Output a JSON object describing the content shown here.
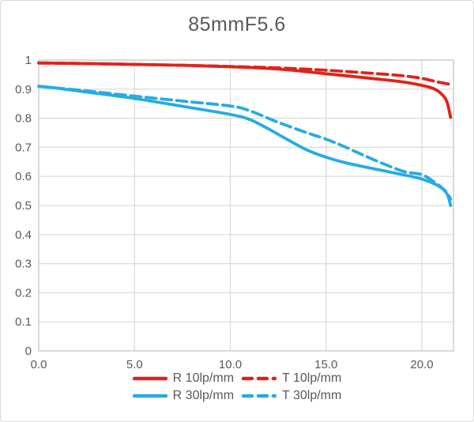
{
  "chart_data": {
    "type": "line",
    "title": "85mmF5.6",
    "xlabel": "",
    "ylabel": "",
    "xlim": [
      0,
      21.65
    ],
    "ylim": [
      0,
      1
    ],
    "grid": true,
    "legend_position": "bottom",
    "colors": {
      "grid": "#D9D9D9",
      "axis": "#C0C0C0",
      "text": "#595959",
      "red": "#E0231A",
      "blue": "#29ABE2"
    },
    "x_axis": {
      "ticks": [
        {
          "value": 0,
          "label": "0.0"
        },
        {
          "value": 5,
          "label": "5.0"
        },
        {
          "value": 10,
          "label": "10.0"
        },
        {
          "value": 15,
          "label": "15.0"
        },
        {
          "value": 20,
          "label": "20.0"
        }
      ]
    },
    "y_axis": {
      "ticks": [
        {
          "value": 0,
          "label": "0"
        },
        {
          "value": 0.1,
          "label": "0.1"
        },
        {
          "value": 0.2,
          "label": "0.2"
        },
        {
          "value": 0.3,
          "label": "0.3"
        },
        {
          "value": 0.4,
          "label": "0.4"
        },
        {
          "value": 0.5,
          "label": "0.5"
        },
        {
          "value": 0.6,
          "label": "0.6"
        },
        {
          "value": 0.7,
          "label": "0.7"
        },
        {
          "value": 0.8,
          "label": "0.8"
        },
        {
          "value": 0.9,
          "label": "0.9"
        },
        {
          "value": 1,
          "label": "1"
        }
      ]
    },
    "series": [
      {
        "name": "R 10lp/mm",
        "color": "#E0231A",
        "style": "solid",
        "points": [
          [
            0,
            0.99
          ],
          [
            2.5,
            0.988
          ],
          [
            5,
            0.985
          ],
          [
            7.5,
            0.982
          ],
          [
            10,
            0.977
          ],
          [
            12.5,
            0.969
          ],
          [
            15,
            0.953
          ],
          [
            17.5,
            0.936
          ],
          [
            19,
            0.925
          ],
          [
            20,
            0.913
          ],
          [
            20.6,
            0.902
          ],
          [
            21,
            0.885
          ],
          [
            21.3,
            0.858
          ],
          [
            21.5,
            0.803
          ]
        ]
      },
      {
        "name": "T 10lp/mm",
        "color": "#E0231A",
        "style": "dashed",
        "points": [
          [
            0,
            0.99
          ],
          [
            2.5,
            0.988
          ],
          [
            5,
            0.985
          ],
          [
            7.5,
            0.982
          ],
          [
            10,
            0.978
          ],
          [
            12.5,
            0.973
          ],
          [
            15,
            0.965
          ],
          [
            17.5,
            0.954
          ],
          [
            19,
            0.946
          ],
          [
            20,
            0.937
          ],
          [
            20.8,
            0.925
          ],
          [
            21.5,
            0.916
          ]
        ]
      },
      {
        "name": "R 30lp/mm",
        "color": "#29ABE2",
        "style": "solid",
        "points": [
          [
            0,
            0.91
          ],
          [
            1,
            0.903
          ],
          [
            2.5,
            0.89
          ],
          [
            5,
            0.868
          ],
          [
            7.5,
            0.841
          ],
          [
            10,
            0.813
          ],
          [
            11,
            0.796
          ],
          [
            12,
            0.763
          ],
          [
            13,
            0.726
          ],
          [
            14,
            0.691
          ],
          [
            15,
            0.666
          ],
          [
            16,
            0.647
          ],
          [
            17.5,
            0.626
          ],
          [
            19,
            0.606
          ],
          [
            20,
            0.591
          ],
          [
            20.7,
            0.573
          ],
          [
            21.1,
            0.556
          ],
          [
            21.35,
            0.535
          ],
          [
            21.5,
            0.5
          ]
        ]
      },
      {
        "name": "T 30lp/mm",
        "color": "#29ABE2",
        "style": "dashed",
        "points": [
          [
            0,
            0.91
          ],
          [
            2.5,
            0.894
          ],
          [
            5,
            0.876
          ],
          [
            7.5,
            0.859
          ],
          [
            10,
            0.842
          ],
          [
            11,
            0.826
          ],
          [
            12.5,
            0.786
          ],
          [
            14,
            0.75
          ],
          [
            15,
            0.728
          ],
          [
            16,
            0.701
          ],
          [
            17.5,
            0.657
          ],
          [
            19,
            0.618
          ],
          [
            20,
            0.606
          ],
          [
            20.7,
            0.578
          ],
          [
            21.1,
            0.558
          ],
          [
            21.35,
            0.54
          ],
          [
            21.5,
            0.522
          ]
        ]
      }
    ]
  }
}
